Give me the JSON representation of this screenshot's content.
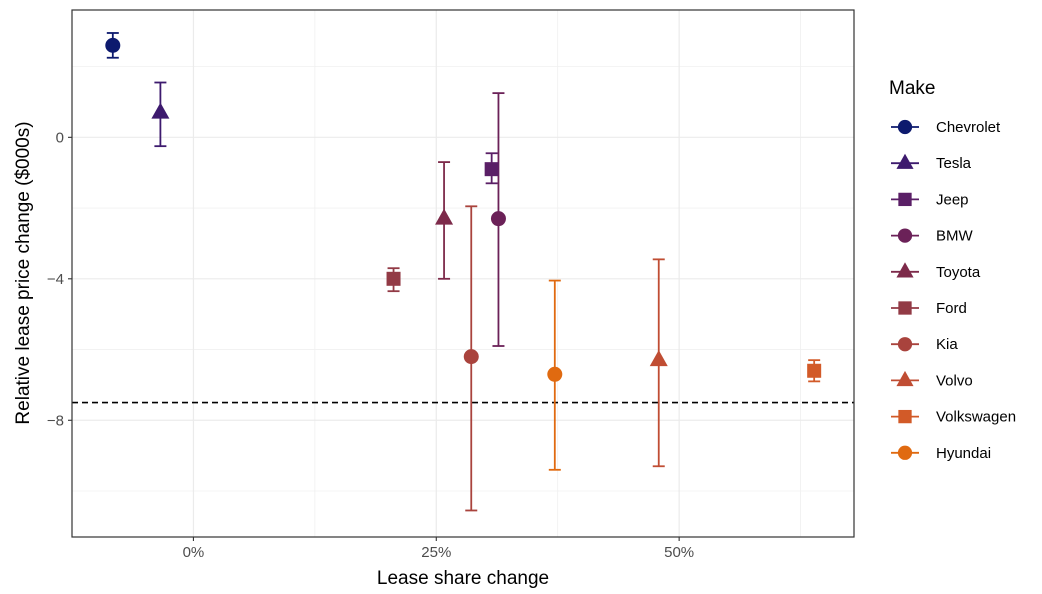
{
  "chart_data": {
    "type": "scatter",
    "title": "",
    "xlabel": "Lease share change",
    "ylabel": "Relative lease price change ($000s)",
    "xlim": [
      -0.125,
      0.68
    ],
    "ylim": [
      -11.3,
      3.6
    ],
    "x_ticks": [
      0,
      0.25,
      0.5
    ],
    "x_tick_labels": [
      "0%",
      "25%",
      "50%"
    ],
    "y_ticks": [
      0,
      -4,
      -8
    ],
    "y_tick_labels": [
      "0",
      "−4",
      "−8"
    ],
    "grid": true,
    "reference_line": {
      "y": -7.5,
      "style": "dashed"
    },
    "legend": {
      "title": "Make",
      "placement": "right"
    },
    "series": [
      {
        "name": "Chevrolet",
        "color": "#0d1a6e",
        "shape": "circle",
        "x": -0.083,
        "y": 2.6,
        "ymin": 2.25,
        "ymax": 2.95
      },
      {
        "name": "Tesla",
        "color": "#3d1a6e",
        "shape": "triangle",
        "x": -0.034,
        "y": 0.7,
        "ymin": -0.25,
        "ymax": 1.55
      },
      {
        "name": "Jeep",
        "color": "#5a1f66",
        "shape": "square",
        "x": 0.307,
        "y": -0.9,
        "ymin": -1.3,
        "ymax": -0.45
      },
      {
        "name": "BMW",
        "color": "#6b2158",
        "shape": "circle",
        "x": 0.314,
        "y": -2.3,
        "ymin": -5.9,
        "ymax": 1.25
      },
      {
        "name": "Toyota",
        "color": "#7d2a4a",
        "shape": "triangle",
        "x": 0.258,
        "y": -2.3,
        "ymin": -4.0,
        "ymax": -0.7
      },
      {
        "name": "Ford",
        "color": "#923a45",
        "shape": "square",
        "x": 0.206,
        "y": -4.0,
        "ymin": -4.35,
        "ymax": -3.7
      },
      {
        "name": "Kia",
        "color": "#a9433d",
        "shape": "circle",
        "x": 0.286,
        "y": -6.2,
        "ymin": -10.55,
        "ymax": -1.95
      },
      {
        "name": "Volvo",
        "color": "#c04d33",
        "shape": "triangle",
        "x": 0.479,
        "y": -6.3,
        "ymin": -9.3,
        "ymax": -3.45
      },
      {
        "name": "Volkswagen",
        "color": "#d25a28",
        "shape": "square",
        "x": 0.639,
        "y": -6.6,
        "ymin": -6.9,
        "ymax": -6.3
      },
      {
        "name": "Hyundai",
        "color": "#e06a10",
        "shape": "circle",
        "x": 0.372,
        "y": -6.7,
        "ymin": -9.4,
        "ymax": -4.05
      }
    ]
  }
}
